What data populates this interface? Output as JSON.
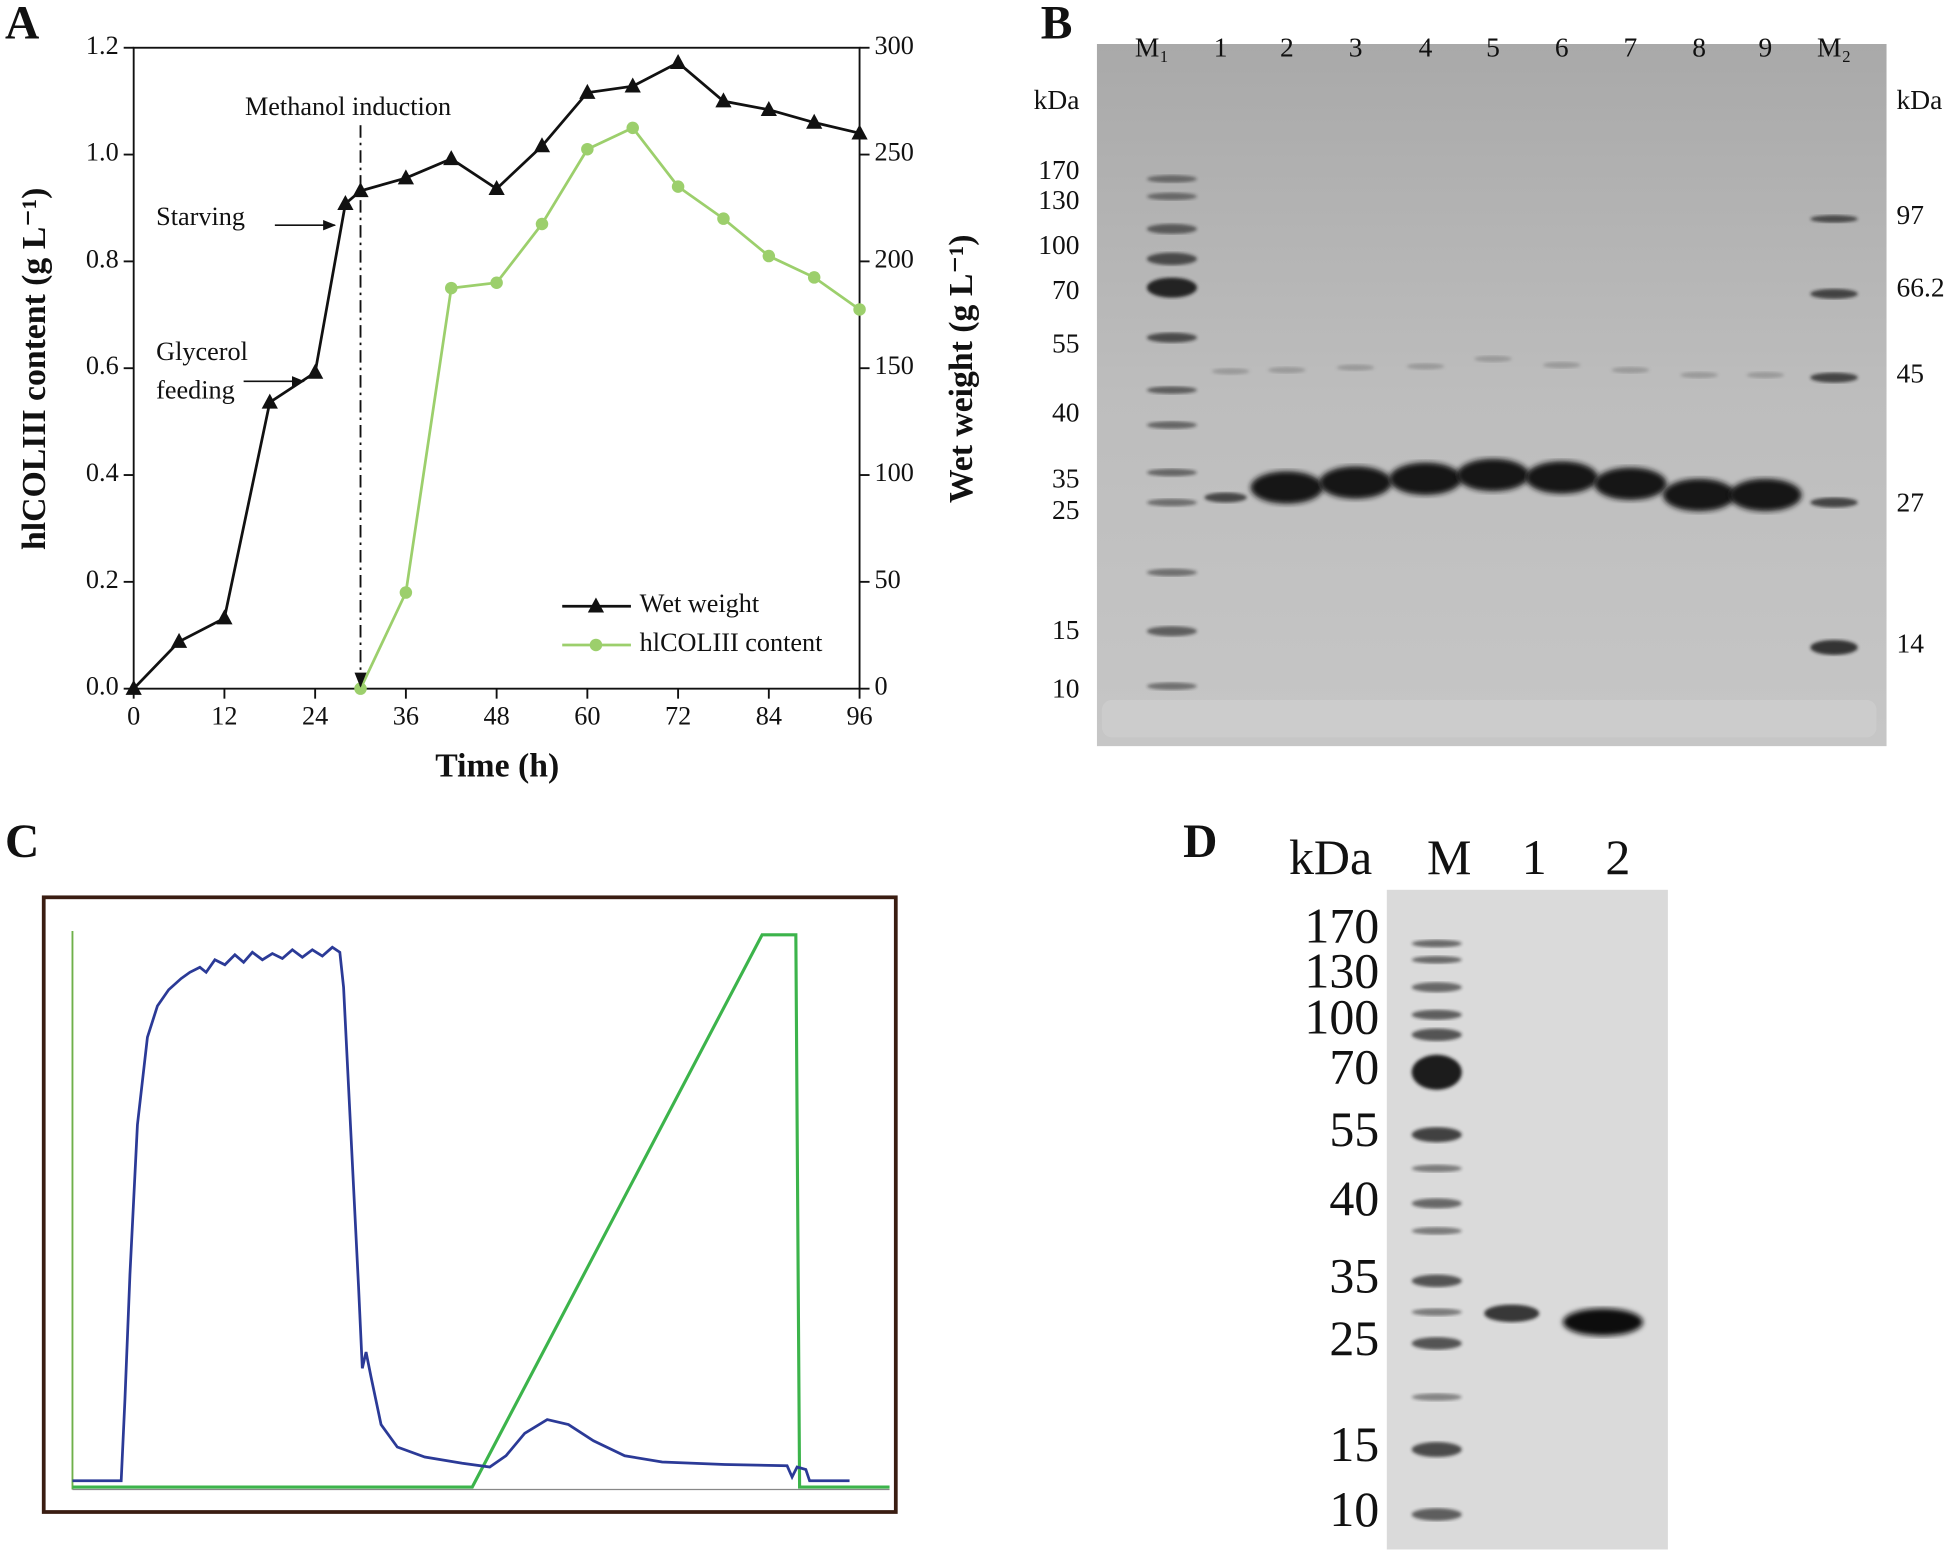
{
  "panel_labels": [
    "A",
    "B",
    "C",
    "D"
  ],
  "chart_data": {
    "type": "line",
    "xlabel": "Time (h)",
    "ylabel": "hlCOLIII content  (g L⁻¹)",
    "y2label": "Wet weight (g L⁻¹)",
    "x": [
      0,
      6,
      12,
      18,
      24,
      28,
      30,
      36,
      42,
      48,
      54,
      60,
      66,
      72,
      78,
      84,
      90,
      96
    ],
    "xlim": [
      0,
      96
    ],
    "xticks": [
      0,
      12,
      24,
      36,
      48,
      60,
      72,
      84,
      96
    ],
    "ylim": [
      0,
      1.2
    ],
    "yticks": [
      {
        "value": 0,
        "label": "0.0"
      },
      0.2,
      0.4,
      0.6,
      0.8,
      {
        "value": 1,
        "label": "1.0"
      },
      1.2
    ],
    "y2lim": [
      0,
      300
    ],
    "y2ticks": [
      0,
      50,
      100,
      150,
      200,
      250,
      300
    ],
    "series": [
      {
        "name": "Wet weight",
        "color": "#111111",
        "marker": "triangle",
        "axis": "y2",
        "values": [
          0,
          22,
          33,
          134,
          148,
          227,
          233,
          239,
          248,
          234,
          254,
          279,
          282,
          293,
          275,
          271,
          265,
          260
        ]
      },
      {
        "name": "hlCOLIII content",
        "color": "#9ccf6c",
        "marker": "circle",
        "axis": "y",
        "values": [
          null,
          null,
          null,
          null,
          null,
          null,
          0,
          0.18,
          0.75,
          0.76,
          0.87,
          1.01,
          1.05,
          0.94,
          0.88,
          0.81,
          0.77,
          0.71
        ]
      }
    ],
    "legend": "lower right",
    "annotations": [
      {
        "text": "Methanol induction",
        "x": 30
      },
      {
        "text": "Starving"
      },
      {
        "text": [
          "Glycerol",
          "feeding"
        ]
      }
    ]
  },
  "gel_b": {
    "lanes": [
      "M₁",
      "1",
      "2",
      "3",
      "4",
      "5",
      "6",
      "7",
      "8",
      "9",
      "M₂"
    ],
    "left_markers": [
      "kDa",
      "170",
      "130",
      "100",
      "70",
      "55",
      "40",
      "35",
      "25",
      "15",
      "10"
    ],
    "right_markers": [
      "kDa",
      "97",
      "66.2",
      "45",
      "27",
      "14"
    ]
  },
  "gel_d": {
    "lanes": [
      "kDa",
      "M",
      "1",
      "2"
    ],
    "markers": [
      "170",
      "130",
      "100",
      "70",
      "55",
      "40",
      "35",
      "25",
      "15",
      "10"
    ]
  }
}
